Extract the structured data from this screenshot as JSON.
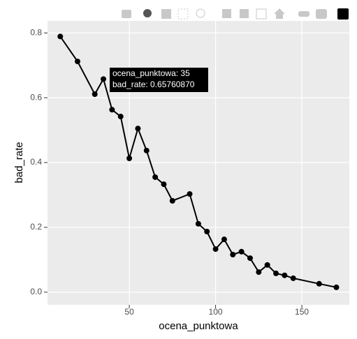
{
  "chart_data": {
    "type": "line",
    "x_label": "ocena_punktowa",
    "y_label": "bad_rate",
    "x": [
      10,
      20,
      30,
      35,
      40,
      45,
      50,
      55,
      60,
      65,
      70,
      75,
      85,
      90,
      95,
      100,
      105,
      110,
      115,
      120,
      125,
      130,
      135,
      140,
      145,
      160,
      170
    ],
    "series": [
      {
        "color": "#000000",
        "values": [
          0.789,
          0.712,
          0.611,
          0.6576087,
          0.563,
          0.542,
          0.413,
          0.505,
          0.437,
          0.355,
          0.333,
          0.282,
          0.303,
          0.211,
          0.187,
          0.133,
          0.163,
          0.116,
          0.125,
          0.105,
          0.062,
          0.084,
          0.058,
          0.052,
          0.043,
          0.026,
          0.015
        ]
      }
    ],
    "xlim": [
      2.6,
      177.5
    ],
    "ylim": [
      -0.039,
      0.837
    ],
    "xticks": [
      50,
      100,
      150
    ],
    "yticks": [
      {
        "value": 0,
        "label": "0.0"
      },
      {
        "value": 0.2,
        "label": "0.2"
      },
      {
        "value": 0.4,
        "label": "0.4"
      },
      {
        "value": 0.6,
        "label": "0.6"
      },
      {
        "value": 0.8,
        "label": "0.8"
      }
    ],
    "grid": true,
    "tooltip": {
      "lines": [
        "ocena_punktowa:  35",
        "bad_rate: 0.65760870"
      ]
    }
  }
}
